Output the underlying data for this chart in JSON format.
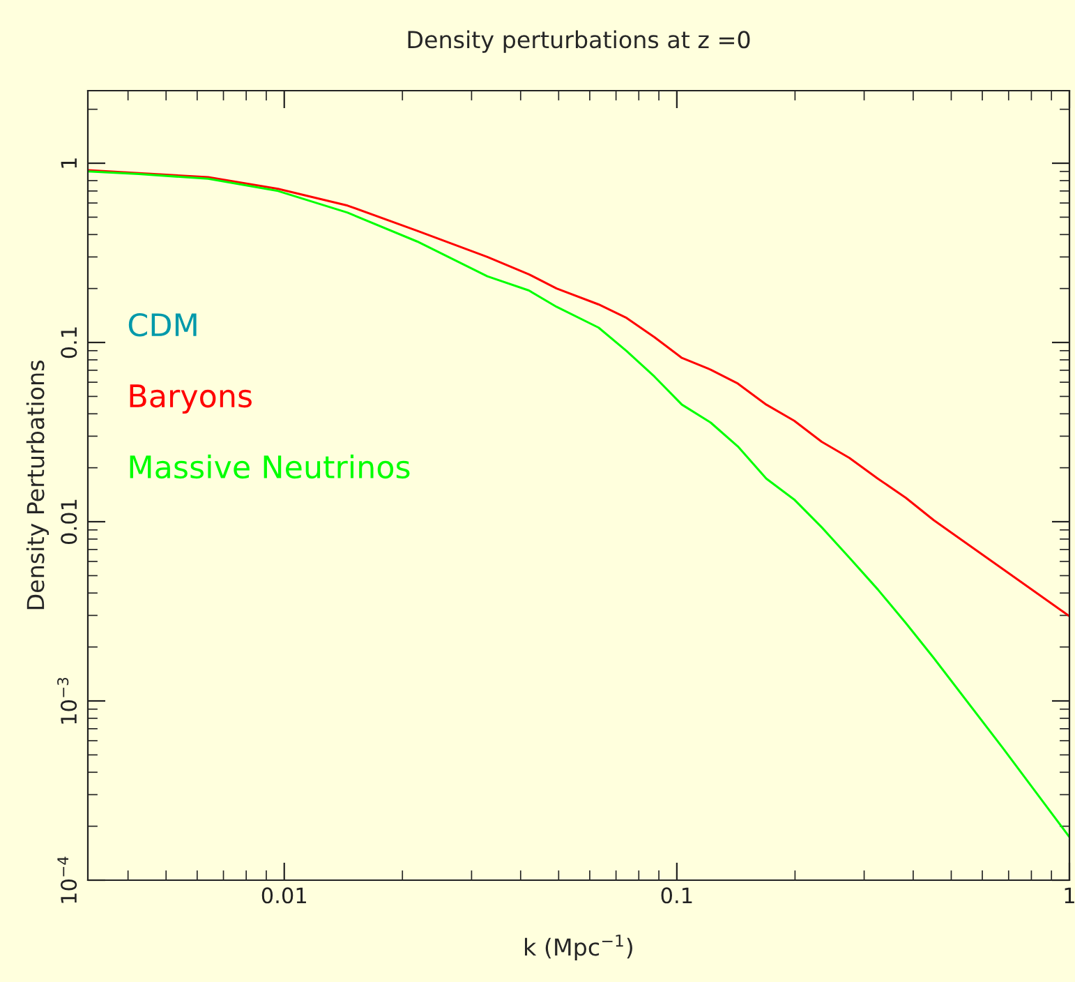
{
  "chart_data": {
    "type": "line",
    "title": "Density perturbations at z =0",
    "xlabel": "k (Mpc$^{−1}$)",
    "ylabel": "Density Perturbations",
    "log": "xy",
    "legend": "left",
    "x": [
      0.00316,
      0.00426,
      0.0064,
      0.00964,
      0.0145,
      0.0218,
      0.0329,
      0.042,
      0.0494,
      0.0632,
      0.0745,
      0.0877,
      0.103,
      0.122,
      0.143,
      0.169,
      0.199,
      0.234,
      0.275,
      0.325,
      0.383,
      0.451,
      0.678,
      1
    ],
    "xlim": [
      0.00316,
      1
    ],
    "xticks": [
      0.01,
      0.1,
      1
    ],
    "ylim": [
      0.0001,
      2.54
    ],
    "yticks": [
      {
        "value": 0.0001,
        "label": "10$^{−4}$"
      },
      {
        "value": 0.001,
        "label": "10$^{−3}$"
      },
      0.01,
      0.1,
      1
    ],
    "series": [
      {
        "name": "CDM",
        "color": "#0099aa",
        "values": [
          null,
          null,
          null,
          null,
          null,
          null,
          null,
          null,
          null,
          null,
          null,
          null,
          null,
          null,
          null,
          null,
          null,
          null,
          null,
          null,
          null,
          null,
          null,
          null
        ]
      },
      {
        "name": "Baryons",
        "color": "#ff0000",
        "values": [
          0.914,
          0.88,
          0.836,
          0.72,
          0.58,
          0.42,
          0.3,
          0.24,
          0.2,
          0.163,
          0.137,
          0.107,
          0.082,
          0.0705,
          0.059,
          0.045,
          0.0366,
          0.0279,
          0.0227,
          0.0174,
          0.0136,
          0.0102,
          0.00543,
          0.00297
        ]
      },
      {
        "name": "Massive Neutrinos",
        "color": "#00ff00",
        "values": [
          0.9,
          0.87,
          0.82,
          0.7,
          0.53,
          0.366,
          0.234,
          0.195,
          0.158,
          0.121,
          0.0895,
          0.0645,
          0.045,
          0.0357,
          0.0263,
          0.0174,
          0.0133,
          0.0093,
          0.0063,
          0.00419,
          0.00272,
          0.00174,
          0.000543,
          0.000174
        ]
      }
    ]
  }
}
